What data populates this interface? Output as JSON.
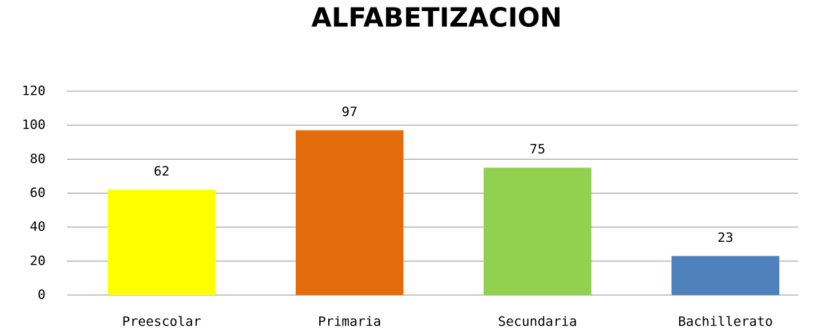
{
  "chart_data": {
    "type": "bar",
    "title": "ALFABETIZACION",
    "categories": [
      "Preescolar",
      "Primaria",
      "Secundaria",
      "Bachillerato"
    ],
    "values": [
      62,
      97,
      75,
      23
    ],
    "colors": [
      "#ffff00",
      "#e46c0a",
      "#92d050",
      "#4f81bd"
    ],
    "ylim": [
      0,
      120
    ],
    "yticks": [
      0,
      20,
      40,
      60,
      80,
      100,
      120
    ],
    "grid": true
  }
}
